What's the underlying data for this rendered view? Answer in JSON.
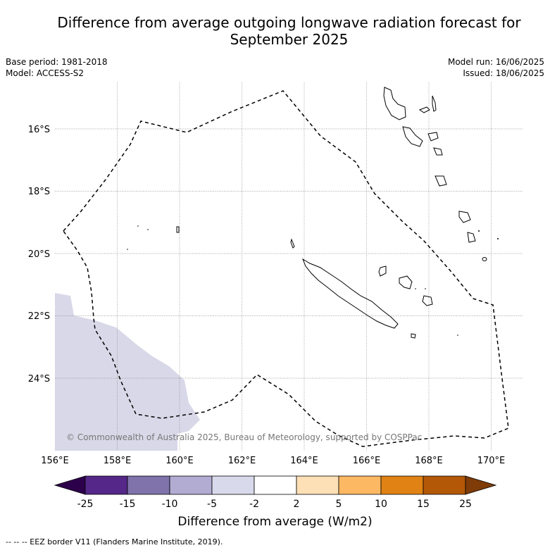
{
  "title_line1": "Difference from average outgoing longwave radiation forecast for",
  "title_line2": "September 2025",
  "meta_left": {
    "base_period": "Base period: 1981-2018",
    "model": "Model: ACCESS-S2"
  },
  "meta_right": {
    "model_run": "Model run: 16/06/2025",
    "issued": "Issued: 18/06/2025"
  },
  "map": {
    "lon_ticks": [
      "156°E",
      "158°E",
      "160°E",
      "162°E",
      "164°E",
      "166°E",
      "168°E",
      "170°E"
    ],
    "lat_ticks": [
      "16°S",
      "18°S",
      "20°S",
      "22°S",
      "24°S"
    ],
    "copyright": "© Commonwealth of Australia 2025, Bureau of Meteorology, supported by COSPPac",
    "anomaly_fill_color": "#d8d8e8",
    "eez_line_style": "dashed"
  },
  "colorbar": {
    "tick_labels": [
      "-25",
      "-15",
      "-10",
      "-5",
      "-2",
      "2",
      "5",
      "10",
      "15",
      "25"
    ],
    "colors": [
      "#2d004b",
      "#542788",
      "#8073ac",
      "#b2abd2",
      "#d8daeb",
      "#ffffff",
      "#fee0b6",
      "#fdb863",
      "#e08214",
      "#b35806",
      "#7f3b08"
    ],
    "label": "Difference from average (W/m2)"
  },
  "footer": "--  --  -- EEZ border V11 (Flanders Marine Institute, 2019)."
}
